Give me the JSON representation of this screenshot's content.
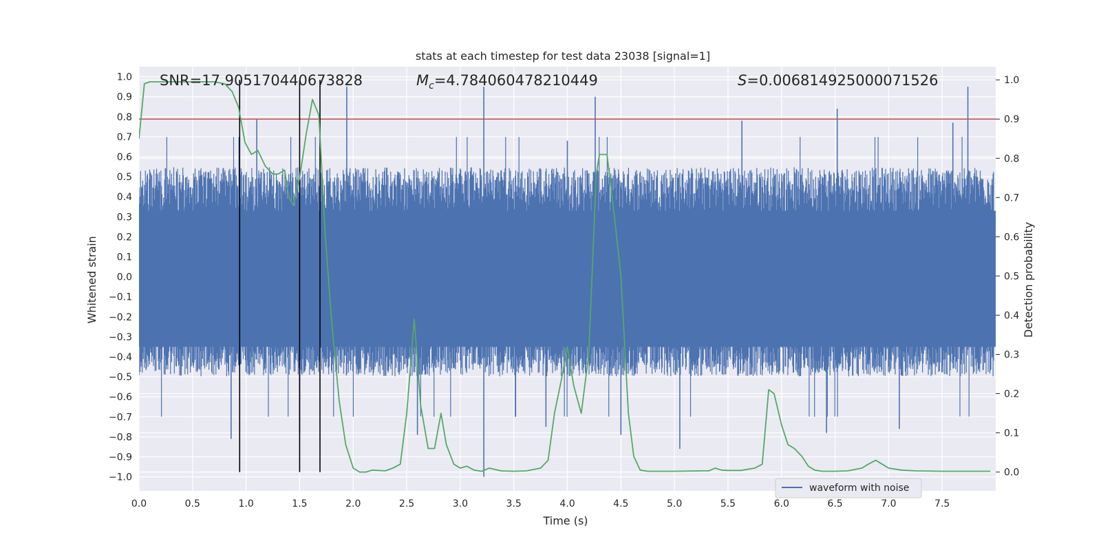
{
  "chart_data": {
    "type": "line",
    "title": "stats at each timestep for test data 23038 [signal=1]",
    "xlabel": "Time (s)",
    "ylabel_left": "Whitened strain",
    "ylabel_right": "Detection probability",
    "xlim": [
      0.0,
      8.0
    ],
    "ylim_left": [
      -1.07,
      1.05
    ],
    "ylim_right": [
      -0.048,
      1.0336
    ],
    "x_ticks": [
      "0.0",
      "0.5",
      "1.0",
      "1.5",
      "2.0",
      "2.5",
      "3.0",
      "3.5",
      "4.0",
      "4.5",
      "5.0",
      "5.5",
      "6.0",
      "6.5",
      "7.0",
      "7.5"
    ],
    "y_ticks_left": [
      "1.0",
      "0.9",
      "0.8",
      "0.7",
      "0.6",
      "0.5",
      "0.4",
      "0.3",
      "0.2",
      "0.1",
      "0.0",
      "−0.1",
      "−0.2",
      "−0.3",
      "−0.4",
      "−0.5",
      "−0.6",
      "−0.7",
      "−0.8",
      "−0.9",
      "−1.0"
    ],
    "y_ticks_right": [
      "1.0",
      "0.9",
      "0.8",
      "0.7",
      "0.6",
      "0.5",
      "0.4",
      "0.3",
      "0.2",
      "0.1",
      "0.0"
    ],
    "grid": true,
    "legend_position": "lower-right",
    "annotations": {
      "snr": "SNR=17.905170440673828",
      "mc_symbol": "M",
      "mc_sub": "c",
      "mc_value": "=4.784060478210449",
      "s_symbol": "S",
      "s_value": "=0.006814925000071526"
    },
    "threshold": {
      "y": 0.9,
      "axis": "right",
      "color": "#c44e52"
    },
    "vlines_x": [
      0.94,
      1.5,
      1.69
    ],
    "series": [
      {
        "name": "waveform with noise",
        "axis": "left",
        "color": "#4c72b0",
        "style": "noise",
        "envelope_top": 0.55,
        "envelope_bottom": -0.5,
        "spikes": [
          {
            "x": 1.94,
            "y": 0.95
          },
          {
            "x": 3.22,
            "y": 0.95
          },
          {
            "x": 4.26,
            "y": 0.9
          },
          {
            "x": 7.74,
            "y": 0.95
          },
          {
            "x": 6.52,
            "y": 0.84
          },
          {
            "x": 5.63,
            "y": 0.78
          },
          {
            "x": 1.1,
            "y": 0.79
          },
          {
            "x": 7.6,
            "y": 0.77
          },
          {
            "x": 3.22,
            "y": -1.0
          },
          {
            "x": 0.86,
            "y": -0.81
          },
          {
            "x": 1.5,
            "y": -0.78
          },
          {
            "x": 2.6,
            "y": -0.79
          },
          {
            "x": 7.1,
            "y": -0.76
          },
          {
            "x": 4.5,
            "y": -0.79
          },
          {
            "x": 5.05,
            "y": -0.86
          },
          {
            "x": 3.8,
            "y": -0.75
          },
          {
            "x": 6.42,
            "y": -0.78
          },
          {
            "x": 4.0,
            "y": 0.68
          }
        ]
      },
      {
        "name": "",
        "axis": "right",
        "color": "#55a868",
        "x": [
          0.0,
          0.05,
          0.1,
          0.2,
          0.3,
          0.5,
          0.7,
          0.8,
          0.87,
          0.93,
          0.99,
          1.05,
          1.11,
          1.18,
          1.25,
          1.3,
          1.36,
          1.4,
          1.44,
          1.5,
          1.56,
          1.62,
          1.68,
          1.74,
          1.8,
          1.87,
          1.93,
          2.0,
          2.06,
          2.12,
          2.18,
          2.3,
          2.37,
          2.44,
          2.5,
          2.57,
          2.63,
          2.7,
          2.76,
          2.82,
          2.87,
          2.94,
          3.0,
          3.06,
          3.13,
          3.2,
          3.27,
          3.38,
          3.5,
          3.62,
          3.75,
          3.82,
          3.88,
          3.94,
          4.0,
          4.06,
          4.13,
          4.2,
          4.27,
          4.3,
          4.37,
          4.44,
          4.5,
          4.57,
          4.62,
          4.68,
          4.75,
          5.0,
          5.25,
          5.32,
          5.38,
          5.44,
          5.5,
          5.62,
          5.75,
          5.82,
          5.88,
          5.93,
          6.0,
          6.06,
          6.12,
          6.19,
          6.25,
          6.31,
          6.38,
          6.5,
          6.62,
          6.75,
          6.81,
          6.88,
          6.94,
          7.0,
          7.12,
          7.25,
          7.5,
          7.75,
          7.95
        ],
        "y": [
          0.85,
          0.99,
          0.995,
          0.995,
          0.995,
          0.995,
          0.995,
          0.99,
          0.97,
          0.93,
          0.84,
          0.81,
          0.82,
          0.78,
          0.76,
          0.76,
          0.77,
          0.7,
          0.68,
          0.75,
          0.86,
          0.95,
          0.91,
          0.6,
          0.38,
          0.18,
          0.07,
          0.01,
          0.0,
          0.0,
          0.005,
          0.003,
          0.01,
          0.02,
          0.15,
          0.39,
          0.17,
          0.06,
          0.06,
          0.15,
          0.07,
          0.02,
          0.01,
          0.015,
          0.005,
          0.002,
          0.01,
          0.003,
          0.002,
          0.003,
          0.01,
          0.03,
          0.15,
          0.23,
          0.32,
          0.22,
          0.15,
          0.3,
          0.76,
          0.81,
          0.81,
          0.65,
          0.5,
          0.15,
          0.04,
          0.005,
          0.002,
          0.002,
          0.003,
          0.003,
          0.01,
          0.005,
          0.004,
          0.004,
          0.01,
          0.02,
          0.21,
          0.2,
          0.12,
          0.07,
          0.06,
          0.04,
          0.015,
          0.005,
          0.002,
          0.002,
          0.003,
          0.01,
          0.02,
          0.03,
          0.02,
          0.01,
          0.005,
          0.003,
          0.002,
          0.002,
          0.002
        ]
      }
    ]
  }
}
